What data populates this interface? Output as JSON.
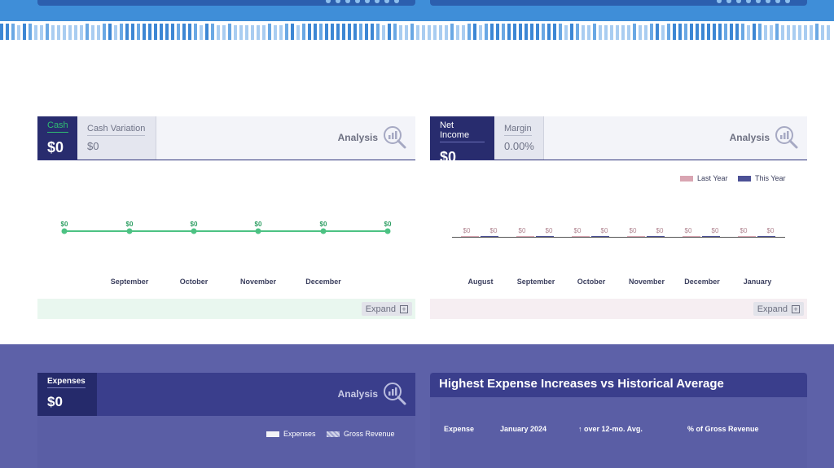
{
  "cash_panel": {
    "main_label": "Cash",
    "main_value": "$0",
    "sub_label": "Cash Variation",
    "sub_value": "$0",
    "analysis_label": "Analysis",
    "expand_label": "Expand",
    "accent_color": "#2fbd72"
  },
  "net_income_panel": {
    "main_label": "Net Income",
    "main_value": "$0",
    "sub_label": "Margin",
    "sub_value": "0.00%",
    "analysis_label": "Analysis",
    "expand_label": "Expand",
    "legend": [
      "Last Year",
      "This Year"
    ],
    "legend_colors": [
      "#d9a5b2",
      "#4c5196"
    ]
  },
  "expenses_panel": {
    "main_label": "Expenses",
    "main_value": "$0",
    "analysis_label": "Analysis",
    "legend": [
      "Expenses",
      "Gross Revenue"
    ]
  },
  "expense_table": {
    "title": "Highest Expense Increases vs Historical Average",
    "columns": [
      "Expense",
      "January 2024",
      "↑ over 12-mo. Avg.",
      "% of Gross Revenue"
    ]
  },
  "chart_data": [
    {
      "type": "line",
      "categories": [
        "",
        "September",
        "October",
        "November",
        "December",
        ""
      ],
      "series": [
        {
          "values": [
            0,
            0,
            0,
            0,
            0,
            0
          ],
          "labels": [
            "$0",
            "$0",
            "$0",
            "$0",
            "$0",
            "$0"
          ]
        }
      ],
      "grid": false
    },
    {
      "type": "bar",
      "categories": [
        "August",
        "September",
        "October",
        "November",
        "December",
        "January"
      ],
      "series": [
        {
          "name": "Last Year",
          "values": [
            0,
            0,
            0,
            0,
            0,
            0
          ],
          "labels": [
            "$0",
            "$0",
            "$0",
            "$0",
            "$0",
            "$0"
          ]
        },
        {
          "name": "This Year",
          "values": [
            0,
            0,
            0,
            0,
            0,
            0
          ],
          "labels": [
            "$0",
            "$0",
            "$0",
            "$0",
            "$0",
            "$0"
          ]
        }
      ],
      "legend_position": "top-right",
      "grid": false
    }
  ]
}
